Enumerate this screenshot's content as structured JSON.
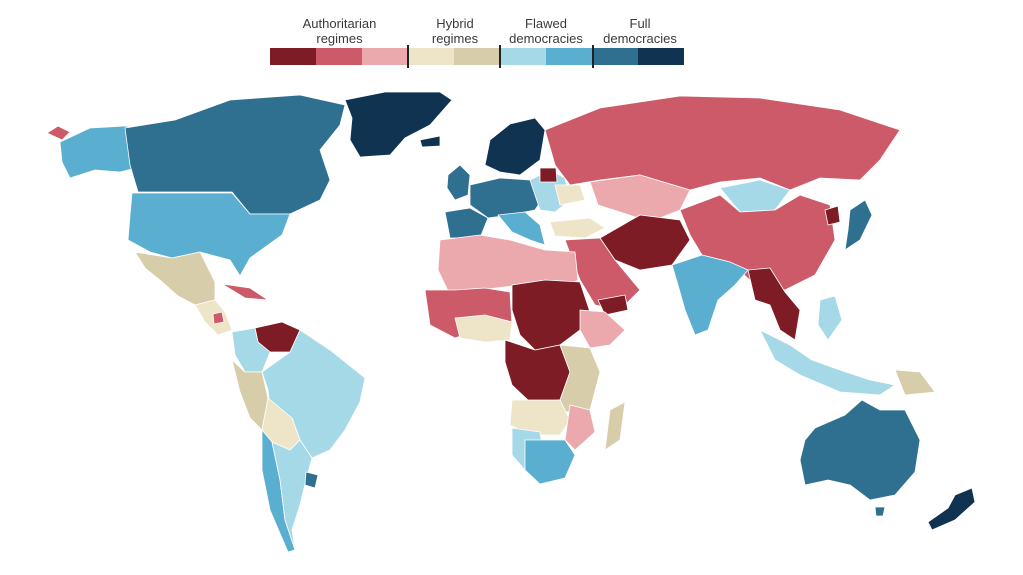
{
  "legend": {
    "groups": [
      {
        "label": "Authoritarian\nregimes"
      },
      {
        "label": "Hybrid\nregimes"
      },
      {
        "label": "Flawed\ndemocracies"
      },
      {
        "label": "Full\ndemocracies"
      }
    ],
    "colors": [
      "#7d1c24",
      "#cc5a68",
      "#eba9ae",
      "#eee4c7",
      "#d7cdaa",
      "#a6d9e8",
      "#5aaed0",
      "#2f6f90",
      "#0f3350"
    ]
  },
  "map": {
    "colors": {
      "authoritarian_dark": "#7d1c24",
      "authoritarian_mid": "#cc5a68",
      "authoritarian_light": "#eba9ae",
      "hybrid_light": "#eee4c7",
      "hybrid_dark": "#d7cdaa",
      "flawed_light": "#a6d9e8",
      "flawed_dark": "#5aaed0",
      "full_mid": "#2f6f90",
      "full_dark": "#0f3350",
      "no_data": "#d9d9d9"
    }
  }
}
